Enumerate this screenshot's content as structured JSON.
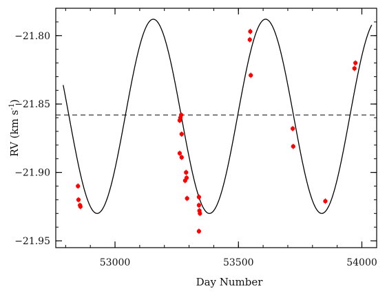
{
  "chart_data": {
    "type": "scatter",
    "title": "",
    "xlabel": "Day Number",
    "ylabel": "RV (km s",
    "ylabel_sup": "-1",
    "ylabel_close": ")",
    "xlim": [
      52760,
      54060
    ],
    "ylim": [
      -21.955,
      -21.78
    ],
    "x_ticks": [
      53000,
      53500,
      54000
    ],
    "x_tick_labels": [
      "53000",
      "53500",
      "54000"
    ],
    "y_ticks": [
      -21.8,
      -21.85,
      -21.9,
      -21.95
    ],
    "y_tick_labels": [
      "−21.80",
      "−21.85",
      "−21.90",
      "−21.95"
    ],
    "x_minor_step": 100,
    "y_minor_step": 0.01,
    "grid": false,
    "legend": "none",
    "points_color": "#ff0000",
    "series": [
      {
        "kind": "points",
        "points": [
          {
            "x": 52850,
            "y": -21.91
          },
          {
            "x": 52852,
            "y": -21.92
          },
          {
            "x": 52858,
            "y": -21.924
          },
          {
            "x": 52860,
            "y": -21.925
          },
          {
            "x": 53262,
            "y": -21.862
          },
          {
            "x": 53265,
            "y": -21.86
          },
          {
            "x": 53268,
            "y": -21.858
          },
          {
            "x": 53270,
            "y": -21.872
          },
          {
            "x": 53262,
            "y": -21.886
          },
          {
            "x": 53270,
            "y": -21.889
          },
          {
            "x": 53288,
            "y": -21.9
          },
          {
            "x": 53290,
            "y": -21.904
          },
          {
            "x": 53284,
            "y": -21.906
          },
          {
            "x": 53292,
            "y": -21.919
          },
          {
            "x": 53340,
            "y": -21.918
          },
          {
            "x": 53340,
            "y": -21.924
          },
          {
            "x": 53342,
            "y": -21.928
          },
          {
            "x": 53344,
            "y": -21.93
          },
          {
            "x": 53340,
            "y": -21.943
          },
          {
            "x": 53548,
            "y": -21.797
          },
          {
            "x": 53546,
            "y": -21.803
          },
          {
            "x": 53550,
            "y": -21.829
          },
          {
            "x": 53720,
            "y": -21.868
          },
          {
            "x": 53722,
            "y": -21.881
          },
          {
            "x": 53852,
            "y": -21.921
          },
          {
            "x": 53970,
            "y": -21.824
          },
          {
            "x": 53974,
            "y": -21.82
          }
        ]
      },
      {
        "kind": "model-curve",
        "model": {
          "mean": -21.859,
          "amplitude": 0.071,
          "period": 455,
          "peak_at": 53155,
          "x_start": 52790,
          "x_end": 54040
        }
      },
      {
        "kind": "reference-line",
        "y": -21.858
      }
    ]
  }
}
